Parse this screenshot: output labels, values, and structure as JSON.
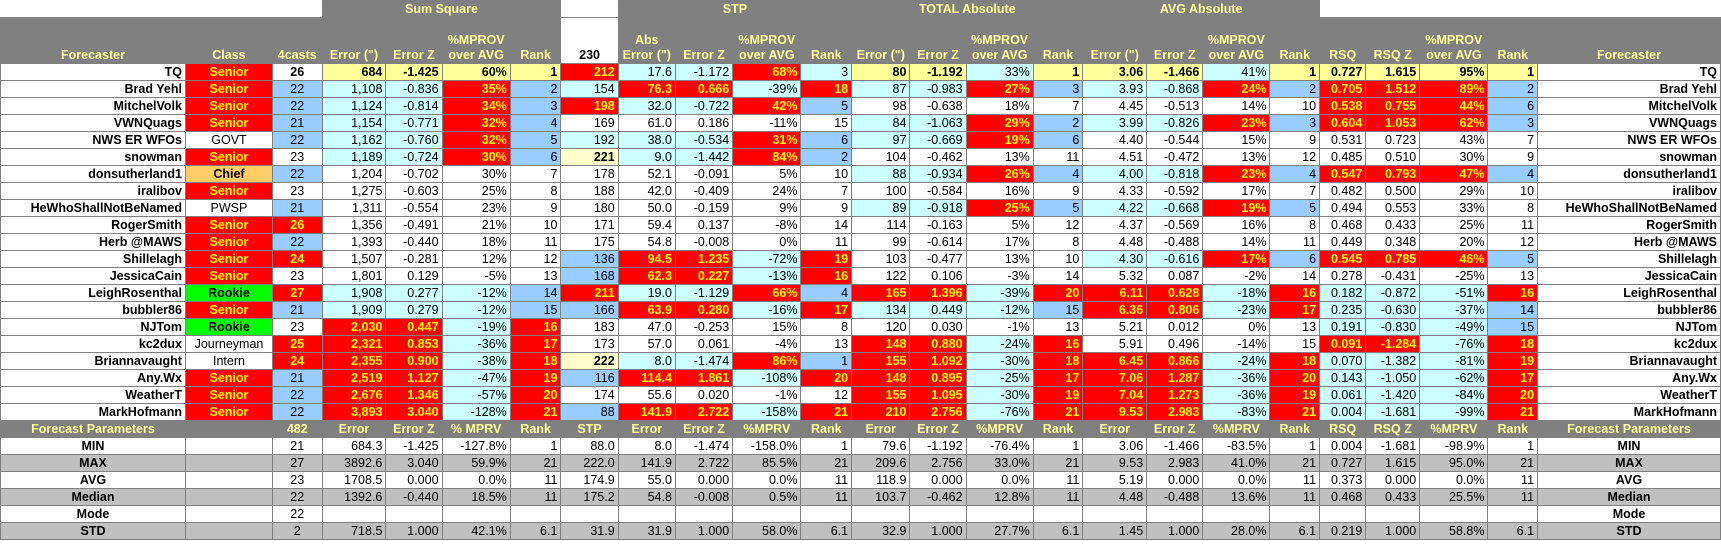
{
  "groups": [
    "Sum Square",
    "STP",
    "TOTAL Absolute",
    "AVG Absolute"
  ],
  "headers": {
    "forecaster": "Forecaster",
    "class": "Class",
    "casts": "4casts",
    "ss_error": "Error (\")",
    "ss_errz": "Error Z",
    "ss_improv": "%MPROV over AVG",
    "ss_rank": "Rank",
    "stp_num": "230",
    "stp_abs": "Abs Error (\")",
    "stp_errz": "Error Z",
    "stp_improv": "%MPROV over AVG",
    "stp_rank": "Rank",
    "ta_error": "Error (\")",
    "ta_errz": "Error Z",
    "ta_improv": "%MPROV over AVG",
    "ta_rank": "Rank",
    "aa_error": "Error (\")",
    "aa_errz": "Error Z",
    "aa_improv": "%MPROV over AVG",
    "aa_rank": "Rank",
    "rsq": "RSQ",
    "rsqz": "RSQ Z",
    "r_improv": "%MPROV over AVG",
    "r_rank": "Rank",
    "forecaster_right": "Forecaster"
  },
  "rows": [
    [
      "TQ",
      "Senior",
      "26",
      "684",
      "-1.425",
      "60%",
      "1",
      "212",
      "17.6",
      "-1.172",
      "68%",
      "3",
      "80",
      "-1.192",
      "33%",
      "1",
      "3.06",
      "-1.466",
      "41%",
      "1",
      "0.727",
      "1.615",
      "95%",
      "1",
      "TQ"
    ],
    [
      "Brad Yehl",
      "Senior",
      "22",
      "1,108",
      "-0.836",
      "35%",
      "2",
      "154",
      "76.3",
      "0.666",
      "-39%",
      "18",
      "87",
      "-0.983",
      "27%",
      "3",
      "3.93",
      "-0.868",
      "24%",
      "2",
      "0.705",
      "1.512",
      "89%",
      "2",
      "Brad Yehl"
    ],
    [
      "MitchelVolk",
      "Senior",
      "22",
      "1,124",
      "-0.814",
      "34%",
      "3",
      "198",
      "32.0",
      "-0.722",
      "42%",
      "5",
      "98",
      "-0.638",
      "18%",
      "7",
      "4.45",
      "-0.513",
      "14%",
      "10",
      "0.538",
      "0.755",
      "44%",
      "6",
      "MitchelVolk"
    ],
    [
      "VWNQuags",
      "Senior",
      "21",
      "1,154",
      "-0.771",
      "32%",
      "4",
      "169",
      "61.0",
      "0.186",
      "-11%",
      "15",
      "84",
      "-1.063",
      "29%",
      "2",
      "3.99",
      "-0.826",
      "23%",
      "3",
      "0.604",
      "1.053",
      "62%",
      "3",
      "VWNQuags"
    ],
    [
      "NWS ER WFOs",
      "GOVT",
      "22",
      "1,162",
      "-0.760",
      "32%",
      "5",
      "192",
      "38.0",
      "-0.534",
      "31%",
      "6",
      "97",
      "-0.669",
      "19%",
      "6",
      "4.40",
      "-0.544",
      "15%",
      "9",
      "0.531",
      "0.723",
      "43%",
      "7",
      "NWS ER WFOs"
    ],
    [
      "snowman",
      "Senior",
      "23",
      "1,189",
      "-0.724",
      "30%",
      "6",
      "221",
      "9.0",
      "-1.442",
      "84%",
      "2",
      "104",
      "-0.462",
      "13%",
      "11",
      "4.51",
      "-0.472",
      "13%",
      "12",
      "0.485",
      "0.510",
      "30%",
      "9",
      "snowman"
    ],
    [
      "donsutherland1",
      "Chief",
      "22",
      "1,204",
      "-0.702",
      "30%",
      "7",
      "178",
      "52.1",
      "-0.091",
      "5%",
      "10",
      "88",
      "-0.934",
      "26%",
      "4",
      "4.00",
      "-0.818",
      "23%",
      "4",
      "0.547",
      "0.793",
      "47%",
      "4",
      "donsutherland1"
    ],
    [
      "iralibov",
      "Senior",
      "23",
      "1,275",
      "-0.603",
      "25%",
      "8",
      "188",
      "42.0",
      "-0.409",
      "24%",
      "7",
      "100",
      "-0.584",
      "16%",
      "9",
      "4.33",
      "-0.592",
      "17%",
      "7",
      "0.482",
      "0.500",
      "29%",
      "10",
      "iralibov"
    ],
    [
      "HeWhoShallNotBeNamed",
      "PWSP",
      "21",
      "1,311",
      "-0.554",
      "23%",
      "9",
      "180",
      "50.0",
      "-0.159",
      "9%",
      "9",
      "89",
      "-0.918",
      "25%",
      "5",
      "4.22",
      "-0.668",
      "19%",
      "5",
      "0.494",
      "0.553",
      "33%",
      "8",
      "HeWhoShallNotBeNamed"
    ],
    [
      "RogerSmith",
      "Senior",
      "26",
      "1,356",
      "-0.491",
      "21%",
      "10",
      "171",
      "59.4",
      "0.137",
      "-8%",
      "14",
      "114",
      "-0.163",
      "5%",
      "12",
      "4.37",
      "-0.569",
      "16%",
      "8",
      "0.468",
      "0.433",
      "25%",
      "11",
      "RogerSmith"
    ],
    [
      "Herb @MAWS",
      "Senior",
      "22",
      "1,393",
      "-0.440",
      "18%",
      "11",
      "175",
      "54.8",
      "-0.008",
      "0%",
      "11",
      "99",
      "-0.614",
      "17%",
      "8",
      "4.48",
      "-0.488",
      "14%",
      "11",
      "0.449",
      "0.348",
      "20%",
      "12",
      "Herb @MAWS"
    ],
    [
      "Shillelagh",
      "Senior",
      "24",
      "1,507",
      "-0.281",
      "12%",
      "12",
      "136",
      "94.5",
      "1.235",
      "-72%",
      "19",
      "103",
      "-0.477",
      "13%",
      "10",
      "4.30",
      "-0.616",
      "17%",
      "6",
      "0.545",
      "0.785",
      "46%",
      "5",
      "Shillelagh"
    ],
    [
      "JessicaCain",
      "Senior",
      "23",
      "1,801",
      "0.129",
      "-5%",
      "13",
      "168",
      "62.3",
      "0.227",
      "-13%",
      "16",
      "122",
      "0.106",
      "-3%",
      "14",
      "5.32",
      "0.087",
      "-2%",
      "14",
      "0.278",
      "-0.431",
      "-25%",
      "13",
      "JessicaCain"
    ],
    [
      "LeighRosenthal",
      "Rookie",
      "27",
      "1,908",
      "0.277",
      "-12%",
      "14",
      "211",
      "19.0",
      "-1.129",
      "66%",
      "4",
      "165",
      "1.396",
      "-39%",
      "20",
      "6.11",
      "0.628",
      "-18%",
      "16",
      "0.182",
      "-0.872",
      "-51%",
      "16",
      "LeighRosenthal"
    ],
    [
      "bubbler86",
      "Senior",
      "21",
      "1,909",
      "0.279",
      "-12%",
      "15",
      "166",
      "63.9",
      "0.280",
      "-16%",
      "17",
      "134",
      "0.449",
      "-12%",
      "15",
      "6.36",
      "0.806",
      "-23%",
      "17",
      "0.235",
      "-0.630",
      "-37%",
      "14",
      "bubbler86"
    ],
    [
      "NJTom",
      "Rookie",
      "23",
      "2,030",
      "0.447",
      "-19%",
      "16",
      "183",
      "47.0",
      "-0.253",
      "15%",
      "8",
      "120",
      "0.030",
      "-1%",
      "13",
      "5.21",
      "0.012",
      "0%",
      "13",
      "0.191",
      "-0.830",
      "-49%",
      "15",
      "NJTom"
    ],
    [
      "kc2dux",
      "Journeyman",
      "25",
      "2,321",
      "0.853",
      "-36%",
      "17",
      "173",
      "57.0",
      "0.061",
      "-4%",
      "13",
      "148",
      "0.880",
      "-24%",
      "16",
      "5.91",
      "0.496",
      "-14%",
      "15",
      "0.091",
      "-1.284",
      "-76%",
      "18",
      "kc2dux"
    ],
    [
      "Briannavaught",
      "Intern",
      "24",
      "2,355",
      "0.900",
      "-38%",
      "18",
      "222",
      "8.0",
      "-1.474",
      "86%",
      "1",
      "155",
      "1.092",
      "-30%",
      "18",
      "6.45",
      "0.866",
      "-24%",
      "18",
      "0.070",
      "-1.382",
      "-81%",
      "19",
      "Briannavaught"
    ],
    [
      "Any.Wx",
      "Senior",
      "21",
      "2,519",
      "1.127",
      "-47%",
      "19",
      "116",
      "114.4",
      "1.861",
      "-108%",
      "20",
      "148",
      "0.895",
      "-25%",
      "17",
      "7.06",
      "1.287",
      "-36%",
      "20",
      "0.143",
      "-1.050",
      "-62%",
      "17",
      "Any.Wx"
    ],
    [
      "WeatherT",
      "Senior",
      "22",
      "2,676",
      "1.346",
      "-57%",
      "20",
      "174",
      "55.6",
      "0.020",
      "-1%",
      "12",
      "155",
      "1.095",
      "-30%",
      "19",
      "7.04",
      "1.273",
      "-36%",
      "19",
      "0.061",
      "-1.420",
      "-84%",
      "20",
      "WeatherT"
    ],
    [
      "MarkHofmann",
      "Senior",
      "22",
      "3,893",
      "3.040",
      "-128%",
      "21",
      "88",
      "141.9",
      "2.722",
      "-158%",
      "21",
      "210",
      "2.756",
      "-76%",
      "21",
      "9.53",
      "2.983",
      "-83%",
      "21",
      "0.004",
      "-1.681",
      "-99%",
      "21",
      "MarkHofmann"
    ]
  ],
  "styles": [
    [
      "nm w",
      "red",
      "c w b",
      "yl",
      "yl",
      "yl",
      "yl",
      "red",
      "lb",
      "lb",
      "red",
      "lb",
      "yl",
      "yl",
      "lb",
      "yl",
      "yl",
      "yl",
      "lb",
      "yl",
      "yl",
      "yl",
      "yl",
      "yl",
      "nm w"
    ],
    [
      "nm w",
      "red",
      "c blue",
      "lb",
      "lb",
      "red",
      "blue",
      "lb",
      "red",
      "red",
      "lb",
      "red",
      "lb",
      "lb",
      "red",
      "blue",
      "lb",
      "lb",
      "red",
      "blue",
      "red",
      "red",
      "red",
      "blue",
      "nm w"
    ],
    [
      "nm w",
      "red",
      "c blue",
      "lb",
      "lb",
      "red",
      "blue",
      "red",
      "lb",
      "lb",
      "red",
      "blue",
      "w",
      "w",
      "w",
      "w",
      "w",
      "w",
      "w",
      "w",
      "red",
      "red",
      "red",
      "blue",
      "nm w"
    ],
    [
      "nm w",
      "red",
      "c blue",
      "lb",
      "lb",
      "red",
      "blue",
      "w",
      "w",
      "w",
      "w",
      "w",
      "lb",
      "lb",
      "red",
      "blue",
      "lb",
      "lb",
      "red",
      "blue",
      "red",
      "red",
      "red",
      "blue",
      "nm w"
    ],
    [
      "nm w",
      "w c",
      "c blue",
      "lb",
      "lb",
      "red",
      "blue",
      "lb",
      "lb",
      "lb",
      "red",
      "blue",
      "lb",
      "lb",
      "red",
      "blue",
      "w",
      "w",
      "w",
      "w",
      "w",
      "w",
      "w",
      "w",
      "nm w"
    ],
    [
      "nm w",
      "red",
      "c w",
      "lb",
      "lb",
      "red",
      "blue",
      "ly b",
      "lb",
      "lb",
      "red",
      "blue",
      "w",
      "w",
      "w",
      "w",
      "w",
      "w",
      "w",
      "w",
      "w",
      "w",
      "w",
      "w",
      "nm w"
    ],
    [
      "nm w",
      "gold",
      "c blue",
      "w",
      "w",
      "w",
      "w",
      "w",
      "w",
      "w",
      "w",
      "w",
      "lb",
      "lb",
      "red",
      "blue",
      "lb",
      "lb",
      "red",
      "blue",
      "red",
      "red",
      "red",
      "blue",
      "nm w"
    ],
    [
      "nm w",
      "red",
      "c w",
      "w",
      "w",
      "w",
      "w",
      "w",
      "w",
      "w",
      "w",
      "w",
      "w",
      "w",
      "w",
      "w",
      "w",
      "w",
      "w",
      "w",
      "w",
      "w",
      "w",
      "w",
      "nm w"
    ],
    [
      "nm w",
      "w c",
      "c blue",
      "w",
      "w",
      "w",
      "w",
      "w",
      "w",
      "w",
      "w",
      "w",
      "lb",
      "lb",
      "red",
      "blue",
      "lb",
      "lb",
      "red",
      "blue",
      "w",
      "w",
      "w",
      "w",
      "nm w"
    ],
    [
      "nm w",
      "red",
      "red",
      "w",
      "w",
      "w",
      "w",
      "w",
      "w",
      "w",
      "w",
      "w",
      "w",
      "w",
      "w",
      "w",
      "w",
      "w",
      "w",
      "w",
      "w",
      "w",
      "w",
      "w",
      "nm w"
    ],
    [
      "nm w",
      "red",
      "c blue",
      "w",
      "w",
      "w",
      "w",
      "w",
      "w",
      "w",
      "w",
      "w",
      "w",
      "w",
      "w",
      "w",
      "w",
      "w",
      "w",
      "w",
      "w",
      "w",
      "w",
      "w",
      "nm w"
    ],
    [
      "nm w",
      "red",
      "red",
      "w",
      "w",
      "w",
      "w",
      "blue",
      "red",
      "red",
      "lb",
      "red",
      "w",
      "w",
      "w",
      "w",
      "lb",
      "lb",
      "red",
      "blue",
      "red",
      "red",
      "red",
      "blue",
      "nm w"
    ],
    [
      "nm w",
      "red",
      "c w",
      "w",
      "w",
      "w",
      "w",
      "blue",
      "red",
      "red",
      "lb",
      "red",
      "w",
      "w",
      "w",
      "w",
      "w",
      "w",
      "w",
      "w",
      "w",
      "w",
      "w",
      "w",
      "nm w"
    ],
    [
      "nm w",
      "grn",
      "red",
      "lb",
      "lb",
      "lb",
      "blue",
      "red",
      "lb",
      "lb",
      "red",
      "blue",
      "red",
      "red",
      "lb",
      "red",
      "red",
      "red",
      "lb",
      "red",
      "lb",
      "lb",
      "lb",
      "red",
      "nm w"
    ],
    [
      "nm w",
      "red",
      "c blue",
      "lb",
      "lb",
      "lb",
      "blue",
      "blue",
      "red",
      "red",
      "lb",
      "red",
      "lb",
      "lb",
      "lb",
      "blue",
      "red",
      "red",
      "lb",
      "red",
      "lb",
      "lb",
      "lb",
      "blue",
      "nm w"
    ],
    [
      "nm w",
      "grn",
      "c w",
      "red",
      "red",
      "lb",
      "red",
      "w",
      "w",
      "w",
      "w",
      "w",
      "w",
      "w",
      "w",
      "w",
      "w",
      "w",
      "w",
      "w",
      "lb",
      "lb",
      "lb",
      "blue",
      "nm w"
    ],
    [
      "nm w",
      "w c",
      "red",
      "red",
      "red",
      "lb",
      "red",
      "w",
      "w",
      "w",
      "w",
      "w",
      "red",
      "red",
      "lb",
      "red",
      "w",
      "w",
      "w",
      "w",
      "red",
      "red",
      "lb",
      "red",
      "nm w"
    ],
    [
      "nm w",
      "w c",
      "red",
      "red",
      "red",
      "lb",
      "red",
      "ly b",
      "lb",
      "lb",
      "red",
      "blue",
      "red",
      "red",
      "lb",
      "red",
      "red",
      "red",
      "lb",
      "red",
      "lb",
      "lb",
      "lb",
      "red",
      "nm w"
    ],
    [
      "nm w",
      "red",
      "c blue",
      "red",
      "red",
      "lb",
      "red",
      "blue",
      "red",
      "red",
      "lb",
      "red",
      "red",
      "red",
      "lb",
      "red",
      "red",
      "red",
      "lb",
      "red",
      "lb",
      "lb",
      "lb",
      "red",
      "nm w"
    ],
    [
      "nm w",
      "red",
      "c blue",
      "red",
      "red",
      "lb",
      "red",
      "w",
      "w",
      "w",
      "w",
      "w",
      "red",
      "red",
      "lb",
      "red",
      "red",
      "red",
      "lb",
      "red",
      "lb",
      "lb",
      "lb",
      "red",
      "nm w"
    ],
    [
      "nm w",
      "red",
      "c blue",
      "red",
      "red",
      "lb",
      "red",
      "blue",
      "red",
      "red",
      "lb",
      "red",
      "red",
      "red",
      "lb",
      "red",
      "red",
      "red",
      "lb",
      "red",
      "lb",
      "lb",
      "lb",
      "red",
      "nm w"
    ]
  ],
  "params_header": [
    "Forecast Parameters",
    "",
    "482",
    "Error",
    "Error Z",
    "% MPRV",
    "Rank",
    "STP",
    "Error",
    "Error Z",
    "%MPRV",
    "Rank",
    "Error",
    "Error Z",
    "%MPRV",
    "Rank",
    "Error",
    "Error Z",
    "%MPRV",
    "Rank",
    "RSQ",
    "RSQ Z",
    "%MPRV",
    "Rank",
    "Forecast Parameters"
  ],
  "params": [
    [
      "MIN",
      "",
      "21",
      "684.3",
      "-1.425",
      "-127.8%",
      "1",
      "88.0",
      "8.0",
      "-1.474",
      "-158.0%",
      "1",
      "79.6",
      "-1.192",
      "-76.4%",
      "1",
      "3.06",
      "-1.466",
      "-83.5%",
      "1",
      "0.004",
      "-1.681",
      "-98.9%",
      "1",
      "MIN"
    ],
    [
      "MAX",
      "",
      "27",
      "3892.6",
      "3.040",
      "59.9%",
      "21",
      "222.0",
      "141.9",
      "2.722",
      "85.5%",
      "21",
      "209.6",
      "2.756",
      "33.0%",
      "21",
      "9.53",
      "2.983",
      "41.0%",
      "21",
      "0.727",
      "1.615",
      "95.0%",
      "21",
      "MAX"
    ],
    [
      "AVG",
      "",
      "23",
      "1708.5",
      "0.000",
      "0.0%",
      "11",
      "174.9",
      "55.0",
      "0.000",
      "0.0%",
      "11",
      "118.9",
      "0.000",
      "0.0%",
      "11",
      "5.19",
      "0.000",
      "0.0%",
      "11",
      "0.373",
      "0.000",
      "0.0%",
      "11",
      "AVG"
    ],
    [
      "Median",
      "",
      "22",
      "1392.6",
      "-0.440",
      "18.5%",
      "11",
      "175.2",
      "54.8",
      "-0.008",
      "0.5%",
      "11",
      "103.7",
      "-0.462",
      "12.8%",
      "11",
      "4.48",
      "-0.488",
      "13.6%",
      "11",
      "0.468",
      "0.433",
      "25.5%",
      "11",
      "Median"
    ],
    [
      "Mode",
      "",
      "22",
      "",
      "",
      "",
      "",
      "",
      "",
      "",
      "",
      "",
      "",
      "",
      "",
      "",
      "",
      "",
      "",
      "",
      "",
      "",
      "",
      "",
      "Mode"
    ],
    [
      "STD",
      "",
      "2",
      "718.5",
      "1.000",
      "42.1%",
      "6.1",
      "31.9",
      "31.9",
      "1.000",
      "58.0%",
      "6.1",
      "32.9",
      "1.000",
      "27.7%",
      "6.1",
      "1.45",
      "1.000",
      "28.0%",
      "6.1",
      "0.219",
      "1.000",
      "58.8%",
      "6.1",
      "STD"
    ]
  ]
}
